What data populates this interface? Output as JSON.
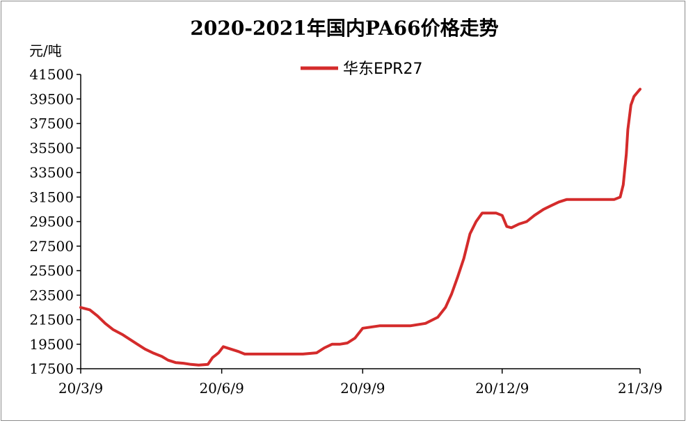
{
  "chart_data": {
    "type": "line",
    "title": "2020-2021年国内PA66价格走势",
    "ylabel": "元/吨",
    "xlabel": "",
    "ylim": [
      17500,
      41500
    ],
    "y_ticks": [
      17500,
      19500,
      21500,
      23500,
      25500,
      27500,
      29500,
      31500,
      33500,
      35500,
      37500,
      39500,
      41500
    ],
    "x_tick_labels": [
      "20/3/9",
      "20/6/9",
      "20/9/9",
      "20/12/9",
      "21/3/9"
    ],
    "x_ticks": [
      "2020-03-09",
      "2020-06-09",
      "2020-09-09",
      "2020-12-09",
      "2021-03-09"
    ],
    "x_range": [
      "2020-03-09",
      "2021-03-09"
    ],
    "grid": false,
    "legend_position": "top-center",
    "colors": {
      "series": "#d42b2b",
      "axis": "#000000"
    },
    "series": [
      {
        "name": "华东EPR27",
        "x": [
          "2020-03-09",
          "2020-03-15",
          "2020-03-20",
          "2020-03-25",
          "2020-03-30",
          "2020-04-05",
          "2020-04-10",
          "2020-04-15",
          "2020-04-20",
          "2020-04-25",
          "2020-05-01",
          "2020-05-05",
          "2020-05-10",
          "2020-05-15",
          "2020-05-20",
          "2020-05-25",
          "2020-05-31",
          "2020-06-03",
          "2020-06-07",
          "2020-06-10",
          "2020-06-15",
          "2020-06-20",
          "2020-06-24",
          "2020-07-01",
          "2020-07-10",
          "2020-07-20",
          "2020-08-01",
          "2020-08-10",
          "2020-08-15",
          "2020-08-20",
          "2020-08-25",
          "2020-08-30",
          "2020-09-04",
          "2020-09-09",
          "2020-09-20",
          "2020-10-01",
          "2020-10-10",
          "2020-10-20",
          "2020-10-28",
          "2020-11-02",
          "2020-11-06",
          "2020-11-10",
          "2020-11-14",
          "2020-11-18",
          "2020-11-22",
          "2020-11-26",
          "2020-11-30",
          "2020-12-05",
          "2020-12-09",
          "2020-12-12",
          "2020-12-15",
          "2020-12-20",
          "2020-12-25",
          "2020-12-30",
          "2021-01-05",
          "2021-01-10",
          "2021-01-15",
          "2021-01-20",
          "2021-01-25",
          "2021-02-01",
          "2021-02-10",
          "2021-02-20",
          "2021-02-24",
          "2021-02-26",
          "2021-02-28",
          "2021-03-01",
          "2021-03-02",
          "2021-03-03",
          "2021-03-05",
          "2021-03-07",
          "2021-03-09"
        ],
        "values": [
          22500,
          22300,
          21800,
          21200,
          20700,
          20300,
          19900,
          19500,
          19100,
          18800,
          18500,
          18200,
          18000,
          17950,
          17850,
          17800,
          17850,
          18400,
          18800,
          19300,
          19100,
          18900,
          18700,
          18700,
          18700,
          18700,
          18700,
          18800,
          19200,
          19500,
          19500,
          19600,
          20000,
          20800,
          21000,
          21000,
          21000,
          21200,
          21700,
          22500,
          23600,
          25000,
          26500,
          28500,
          29500,
          30200,
          30200,
          30200,
          30000,
          29100,
          29000,
          29300,
          29500,
          30000,
          30500,
          30800,
          31100,
          31300,
          31300,
          31300,
          31300,
          31300,
          31500,
          32500,
          35000,
          37000,
          38000,
          39000,
          39700,
          40000,
          40300
        ]
      }
    ]
  }
}
